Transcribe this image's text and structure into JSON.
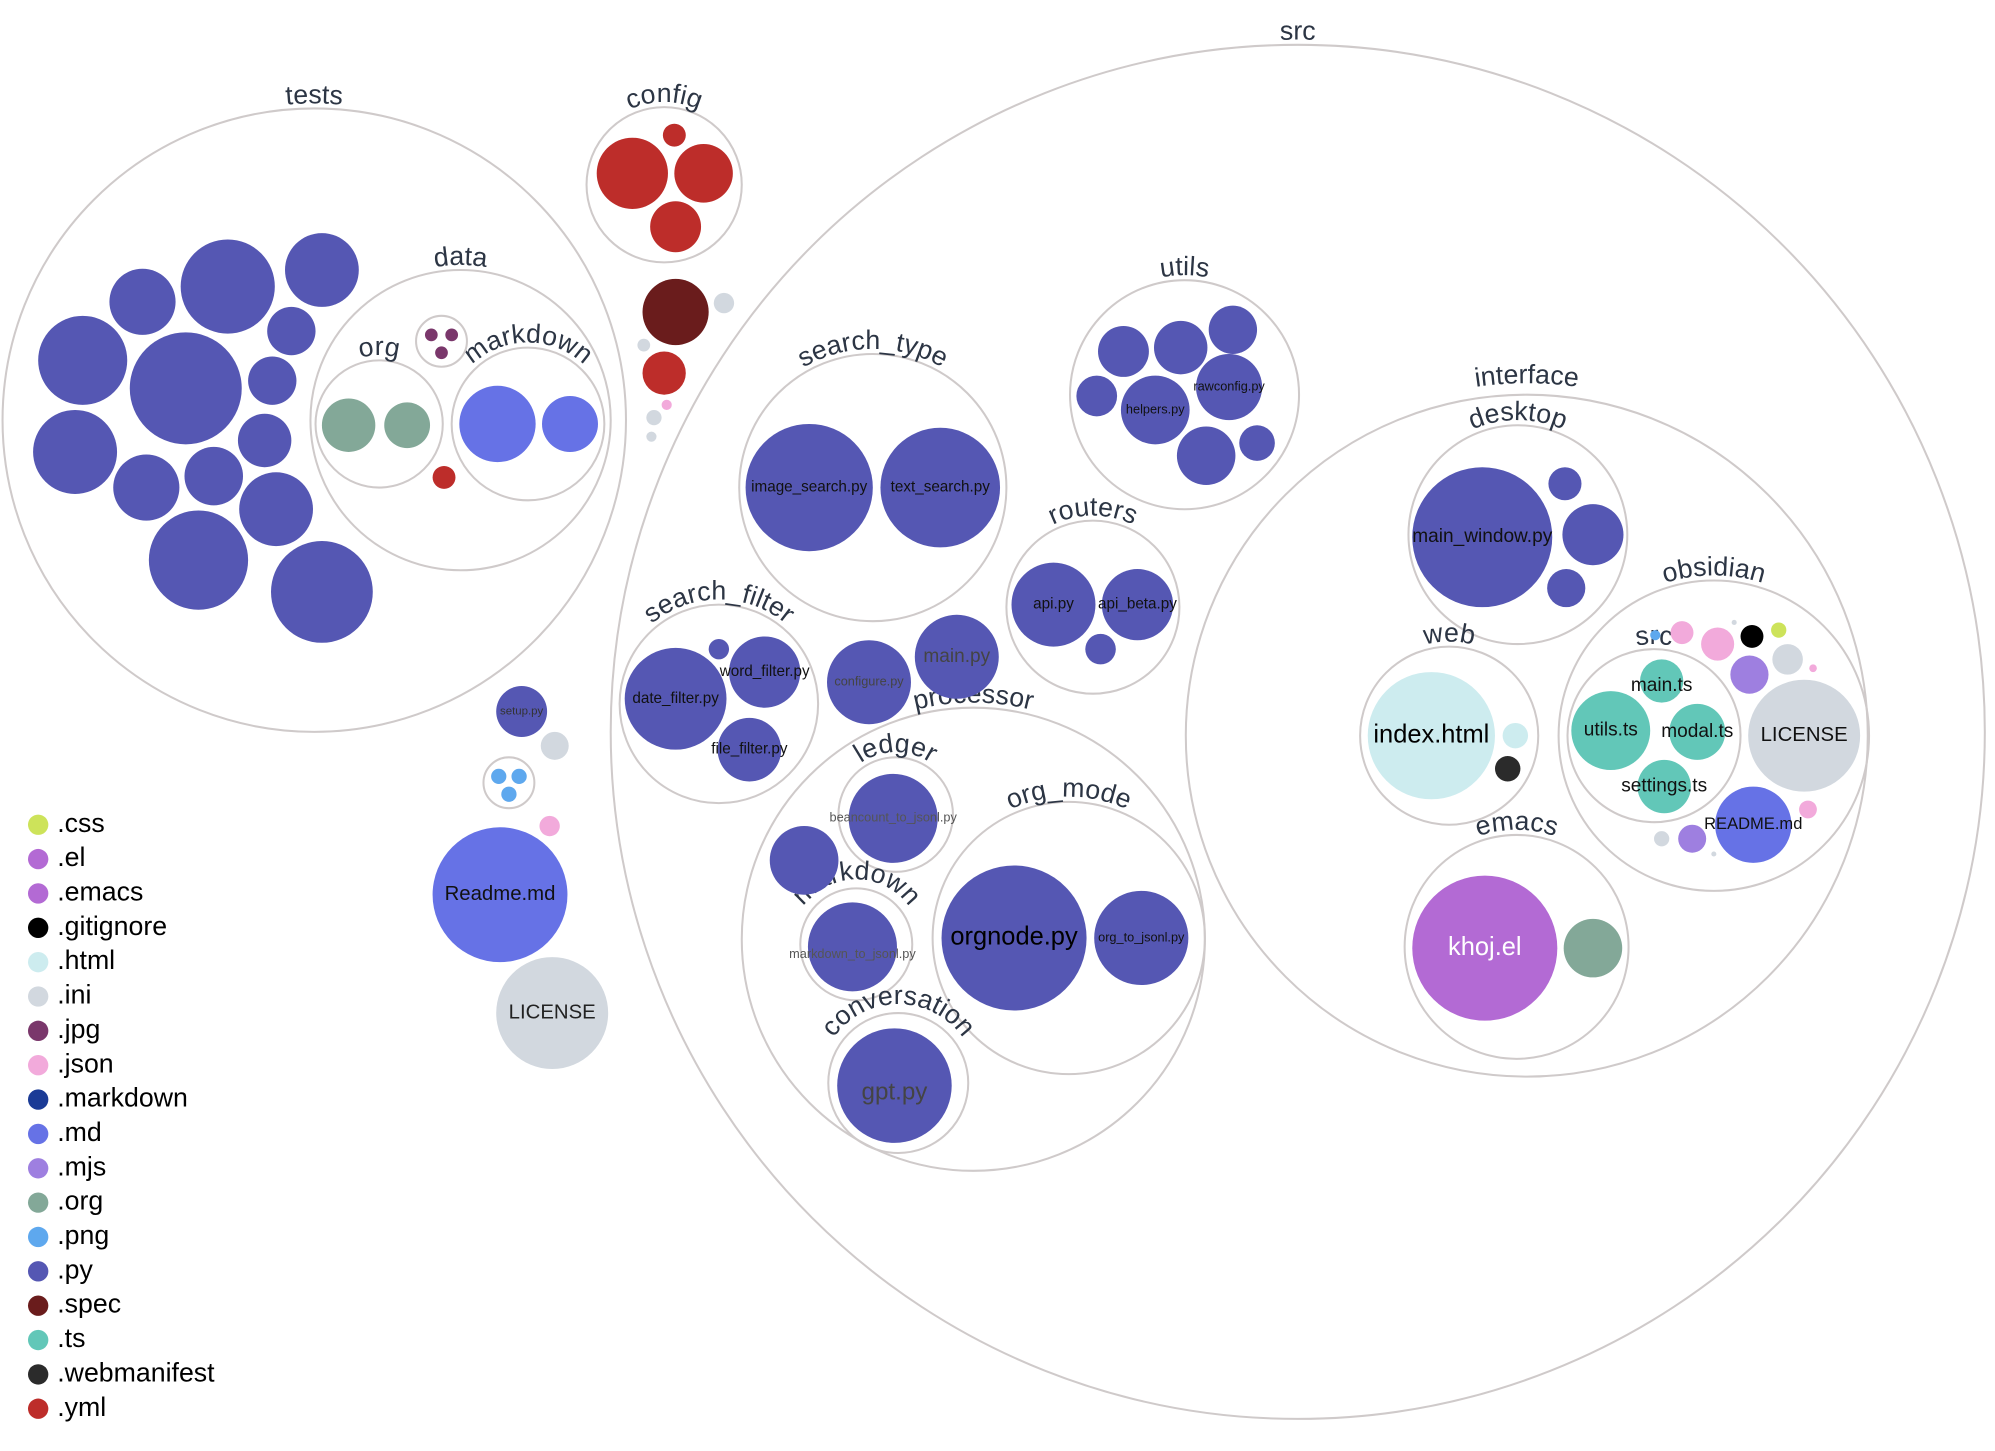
{
  "folders": [
    {
      "label": "tests"
    },
    {
      "label": "data"
    },
    {
      "label": "org"
    },
    {
      "label": "markdown"
    },
    {
      "label": ""
    },
    {
      "label": "config"
    },
    {
      "label": "src"
    },
    {
      "label": "search_type"
    },
    {
      "label": "utils"
    },
    {
      "label": "routers"
    },
    {
      "label": "search_filter"
    },
    {
      "label": "processor"
    },
    {
      "label": "ledger"
    },
    {
      "label": "markdown"
    },
    {
      "label": "org_mode"
    },
    {
      "label": "conversation"
    },
    {
      "label": "interface"
    },
    {
      "label": "desktop"
    },
    {
      "label": "web"
    },
    {
      "label": "obsidian"
    },
    {
      "label": "src"
    },
    {
      "label": "emacs"
    },
    {
      "label": ""
    }
  ],
  "files": [
    {
      "ext": ".py"
    },
    {
      "ext": ".py"
    },
    {
      "ext": ".py"
    },
    {
      "ext": ".py"
    },
    {
      "ext": ".py"
    },
    {
      "ext": ".py"
    },
    {
      "ext": ".py"
    },
    {
      "ext": ".py"
    },
    {
      "ext": ".py"
    },
    {
      "ext": ".py"
    },
    {
      "ext": ".py"
    },
    {
      "ext": ".py"
    },
    {
      "ext": ".py"
    },
    {
      "ext": ".py"
    },
    {
      "ext": ".yml"
    },
    {
      "ext": ".org"
    },
    {
      "ext": ".org"
    },
    {
      "ext": ".md"
    },
    {
      "ext": ".md"
    },
    {
      "ext": ".jpg"
    },
    {
      "ext": ".jpg"
    },
    {
      "ext": ".jpg"
    },
    {
      "ext": ".yml"
    },
    {
      "ext": ".yml"
    },
    {
      "ext": ".yml"
    },
    {
      "ext": ".yml"
    },
    {
      "ext": ".spec"
    },
    {
      "ext": ".ini"
    },
    {
      "ext": ".ini"
    },
    {
      "ext": ".yml"
    },
    {
      "ext": ".json"
    },
    {
      "ext": ".ini"
    },
    {
      "ext": ".ini"
    },
    {
      "ext": ".py",
      "label": "setup.py"
    },
    {
      "ext": ".ini"
    },
    {
      "ext": ".png"
    },
    {
      "ext": ".png"
    },
    {
      "ext": ".png"
    },
    {
      "ext": ".json"
    },
    {
      "ext": ".md",
      "label": "Readme.md"
    },
    {
      "ext": ".ini",
      "label": "LICENSE"
    },
    {
      "ext": ".py",
      "label": "image_search.py"
    },
    {
      "ext": ".py",
      "label": "text_search.py"
    },
    {
      "ext": ".py"
    },
    {
      "ext": ".py"
    },
    {
      "ext": ".py"
    },
    {
      "ext": ".py"
    },
    {
      "ext": ".py",
      "label": "helpers.py"
    },
    {
      "ext": ".py",
      "label": "rawconfig.py"
    },
    {
      "ext": ".py"
    },
    {
      "ext": ".py"
    },
    {
      "ext": ".py",
      "label": "api.py"
    },
    {
      "ext": ".py",
      "label": "api_beta.py"
    },
    {
      "ext": ".py"
    },
    {
      "ext": ".py",
      "label": "date_filter.py"
    },
    {
      "ext": ".py",
      "label": "word_filter.py"
    },
    {
      "ext": ".py",
      "label": "file_filter.py"
    },
    {
      "ext": ".py"
    },
    {
      "ext": ".py",
      "label": "configure.py"
    },
    {
      "ext": ".py",
      "label": "main.py"
    },
    {
      "ext": ".py",
      "label": "beancount_to_jsonl.py"
    },
    {
      "ext": ".py"
    },
    {
      "ext": ".py",
      "label": "markdown_to_jsonl.py"
    },
    {
      "ext": ".py",
      "label": "orgnode.py"
    },
    {
      "ext": ".py",
      "label": "org_to_jsonl.py"
    },
    {
      "ext": ".py",
      "label": "gpt.py"
    },
    {
      "ext": ".py",
      "label": "main_window.py"
    },
    {
      "ext": ".py"
    },
    {
      "ext": ".py"
    },
    {
      "ext": ".py"
    },
    {
      "ext": ".html",
      "label": "index.html"
    },
    {
      "ext": ".html"
    },
    {
      "ext": ".webmanifest"
    },
    {
      "ext": ".ini",
      "label": "LICENSE"
    },
    {
      "ext": ".md",
      "label": "README.md"
    },
    {
      "ext": ".ts",
      "label": "utils.ts"
    },
    {
      "ext": ".ts",
      "label": "modal.ts"
    },
    {
      "ext": ".ts",
      "label": "main.ts"
    },
    {
      "ext": ".ts",
      "label": "settings.ts"
    },
    {
      "ext": ".png"
    },
    {
      "ext": ".json"
    },
    {
      "ext": ".json"
    },
    {
      "ext": ".ini"
    },
    {
      "ext": ".gitignore"
    },
    {
      "ext": ".css"
    },
    {
      "ext": ".mjs"
    },
    {
      "ext": ".ini"
    },
    {
      "ext": ".json"
    },
    {
      "ext": ".json"
    },
    {
      "ext": ".ini"
    },
    {
      "ext": ".mjs"
    },
    {
      "ext": ".ini"
    },
    {
      "ext": ".el",
      "label": "khoj.el"
    },
    {
      "ext": ".org"
    }
  ],
  "legend": [
    {
      "label": ".css",
      "color": "#cde35a"
    },
    {
      "label": ".el",
      "color": "#b36ad4"
    },
    {
      "label": ".emacs",
      "color": "#b36ad4"
    },
    {
      "label": ".gitignore",
      "color": "#000000"
    },
    {
      "label": ".html",
      "color": "#cdecef"
    },
    {
      "label": ".ini",
      "color": "#d2d8df"
    },
    {
      "label": ".jpg",
      "color": "#7a376b"
    },
    {
      "label": ".json",
      "color": "#f2aadb"
    },
    {
      "label": ".markdown",
      "color": "#1b3b96"
    },
    {
      "label": ".md",
      "color": "#6672e6"
    },
    {
      "label": ".mjs",
      "color": "#9e7fe0"
    },
    {
      "label": ".org",
      "color": "#83a898"
    },
    {
      "label": ".png",
      "color": "#5ea8ee"
    },
    {
      "label": ".py",
      "color": "#5557b3"
    },
    {
      "label": ".spec",
      "color": "#6a1c1c"
    },
    {
      "label": ".ts",
      "color": "#62c7b8"
    },
    {
      "label": ".webmanifest",
      "color": "#2b2b2b"
    },
    {
      "label": ".yml",
      "color": "#bd2d2a"
    }
  ]
}
